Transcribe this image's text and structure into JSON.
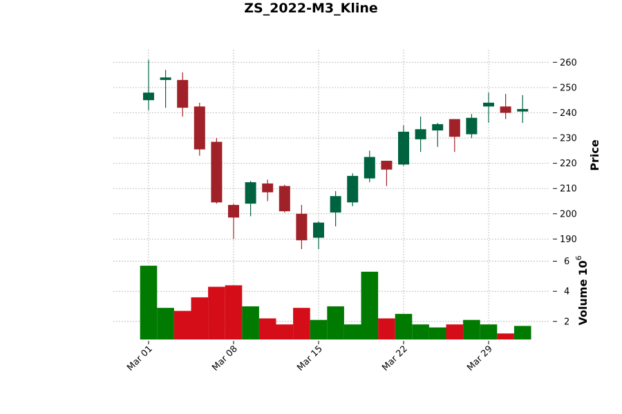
{
  "chart_data": {
    "type": "candlestick",
    "title": "ZS_2022-M3_Kline",
    "ylabel_price": "Price",
    "ylabel_volume": "Volume",
    "volume_multiplier_label": "10",
    "volume_multiplier_exp": "6",
    "ylim_price": [
      183,
      265
    ],
    "ylim_volume": [
      0.8,
      6.3
    ],
    "price_ticks": [
      190,
      200,
      210,
      220,
      230,
      240,
      250,
      260
    ],
    "volume_ticks": [
      2,
      4,
      6
    ],
    "x_ticks": [
      {
        "index": 0,
        "label": "Mar 01"
      },
      {
        "index": 5,
        "label": "Mar 08"
      },
      {
        "index": 10,
        "label": "Mar 15"
      },
      {
        "index": 15,
        "label": "Mar 22"
      },
      {
        "index": 20,
        "label": "Mar 29"
      }
    ],
    "grid": true,
    "colors": {
      "up_candle": "#006340",
      "down_candle": "#a02128",
      "up_volume": "#007a00",
      "down_volume": "#d50d18"
    },
    "candles": [
      {
        "date": "2022-03-01",
        "open": 245,
        "high": 261,
        "low": 241,
        "close": 248,
        "volume": 5.7
      },
      {
        "date": "2022-03-02",
        "open": 253,
        "high": 257,
        "low": 242,
        "close": 254,
        "volume": 2.9
      },
      {
        "date": "2022-03-03",
        "open": 253,
        "high": 256,
        "low": 238.5,
        "close": 242,
        "volume": 2.7
      },
      {
        "date": "2022-03-04",
        "open": 242.5,
        "high": 244,
        "low": 223,
        "close": 225.5,
        "volume": 3.6
      },
      {
        "date": "2022-03-07",
        "open": 228.5,
        "high": 230,
        "low": 204,
        "close": 204.5,
        "volume": 4.3
      },
      {
        "date": "2022-03-08",
        "open": 203.5,
        "high": 204,
        "low": 190,
        "close": 198.5,
        "volume": 4.4
      },
      {
        "date": "2022-03-09",
        "open": 204,
        "high": 213,
        "low": 199,
        "close": 212.5,
        "volume": 3.0
      },
      {
        "date": "2022-03-10",
        "open": 212,
        "high": 213.5,
        "low": 205,
        "close": 208.5,
        "volume": 2.2
      },
      {
        "date": "2022-03-11",
        "open": 211,
        "high": 211.5,
        "low": 200.5,
        "close": 201,
        "volume": 1.8
      },
      {
        "date": "2022-03-14",
        "open": 200,
        "high": 203.5,
        "low": 186,
        "close": 189.5,
        "volume": 2.9
      },
      {
        "date": "2022-03-15",
        "open": 190.5,
        "high": 197,
        "low": 186,
        "close": 196.5,
        "volume": 2.1
      },
      {
        "date": "2022-03-16",
        "open": 200.5,
        "high": 209,
        "low": 195,
        "close": 207,
        "volume": 3.0
      },
      {
        "date": "2022-03-17",
        "open": 204.5,
        "high": 216,
        "low": 203,
        "close": 215,
        "volume": 1.8
      },
      {
        "date": "2022-03-18",
        "open": 214,
        "high": 225,
        "low": 212.5,
        "close": 222.5,
        "volume": 5.3
      },
      {
        "date": "2022-03-21",
        "open": 221,
        "high": 221,
        "low": 211,
        "close": 217.5,
        "volume": 2.2
      },
      {
        "date": "2022-03-22",
        "open": 219.5,
        "high": 235,
        "low": 219,
        "close": 232.5,
        "volume": 2.5
      },
      {
        "date": "2022-03-23",
        "open": 229.5,
        "high": 238.5,
        "low": 224.5,
        "close": 233.5,
        "volume": 1.8
      },
      {
        "date": "2022-03-24",
        "open": 233,
        "high": 236,
        "low": 226.5,
        "close": 235.5,
        "volume": 1.6
      },
      {
        "date": "2022-03-25",
        "open": 237.5,
        "high": 237.5,
        "low": 224.5,
        "close": 230.5,
        "volume": 1.8
      },
      {
        "date": "2022-03-28",
        "open": 231.5,
        "high": 239.5,
        "low": 230,
        "close": 238,
        "volume": 2.1
      },
      {
        "date": "2022-03-29",
        "open": 242.5,
        "high": 248,
        "low": 236,
        "close": 244,
        "volume": 1.8
      },
      {
        "date": "2022-03-30",
        "open": 242.5,
        "high": 247.5,
        "low": 237.5,
        "close": 240,
        "volume": 1.2
      },
      {
        "date": "2022-03-31",
        "open": 240.5,
        "high": 247,
        "low": 236,
        "close": 241.5,
        "volume": 1.7
      }
    ]
  }
}
